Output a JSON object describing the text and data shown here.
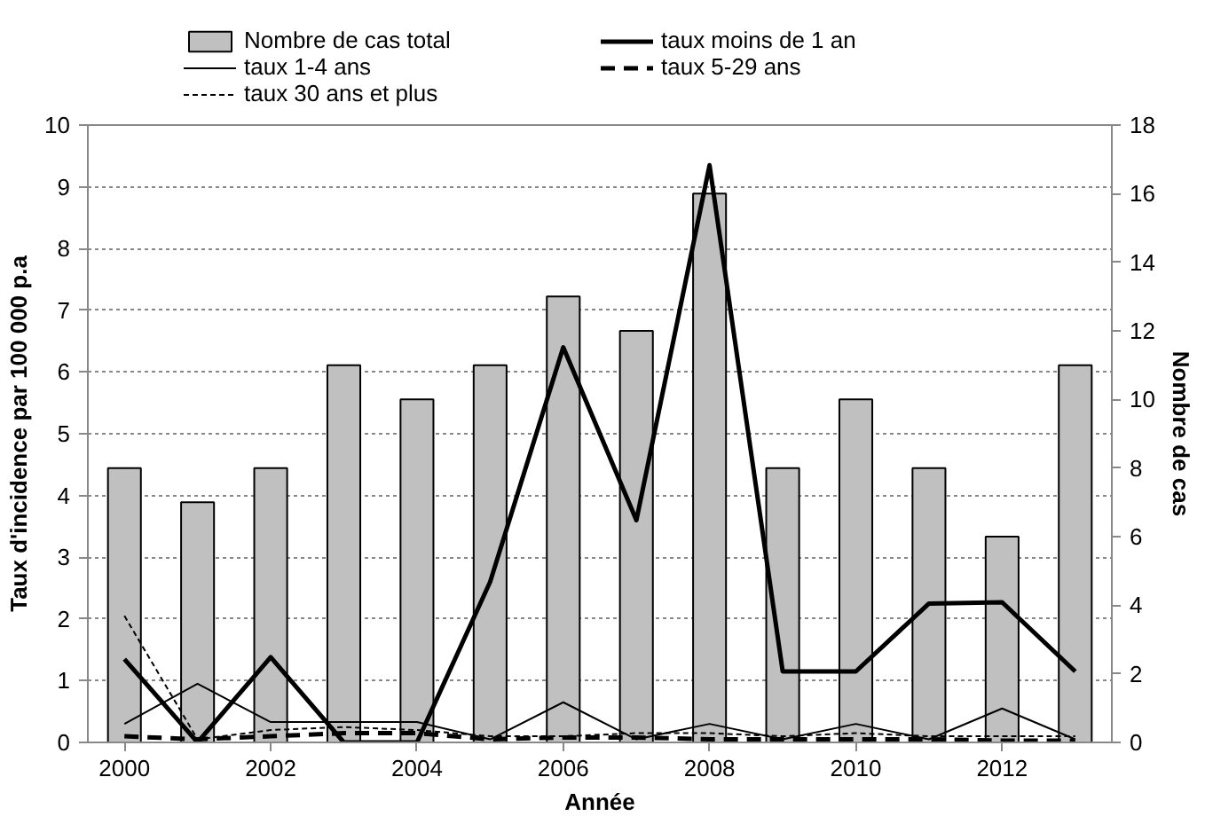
{
  "chart_data": {
    "type": "line",
    "xlabel": "Année",
    "ylabel": "Taux d'incidence par 100 000 p.a",
    "y2label": "Nombre de cas",
    "x": [
      2000,
      2001,
      2002,
      2003,
      2004,
      2005,
      2006,
      2007,
      2008,
      2009,
      2010,
      2011,
      2012,
      2013
    ],
    "xlim": [
      1999.5,
      2013.5
    ],
    "xticks": [
      2000,
      2002,
      2004,
      2006,
      2008,
      2010,
      2012
    ],
    "ylim": [
      0,
      10
    ],
    "yticks": [
      0,
      1,
      2,
      3,
      4,
      5,
      6,
      7,
      8,
      9,
      10
    ],
    "y2lim": [
      0,
      18
    ],
    "y2ticks": [
      0,
      2,
      4,
      6,
      8,
      10,
      12,
      14,
      16,
      18
    ],
    "grid": "y",
    "legend": "top",
    "series": [
      {
        "name": "Nombre de cas total",
        "type": "bar",
        "axis": "y2",
        "color": "#c0c0c0",
        "values": [
          8,
          7,
          8,
          11,
          10,
          11,
          13,
          12,
          16,
          8,
          10,
          8,
          6,
          11
        ]
      },
      {
        "name": "taux moins de 1 an",
        "color": "#000000",
        "line_style": "solid",
        "values": [
          1.35,
          0,
          1.38,
          0,
          0,
          2.6,
          6.4,
          3.6,
          9.35,
          1.15,
          1.15,
          2.25,
          2.27,
          1.15
        ]
      },
      {
        "name": "taux 1-4 ans",
        "color": "#000000",
        "line_style": "solid",
        "values": [
          0.3,
          0.95,
          0.33,
          0.33,
          0.33,
          0.05,
          0.65,
          0.05,
          0.3,
          0.05,
          0.3,
          0.05,
          0.55,
          0.05
        ]
      },
      {
        "name": "taux 5-29 ans",
        "color": "#000000",
        "line_style": "dashed",
        "values": [
          0.1,
          0.05,
          0.1,
          0.15,
          0.15,
          0.05,
          0.08,
          0.08,
          0.05,
          0.05,
          0.05,
          0.05,
          0.03,
          0.03
        ]
      },
      {
        "name": "taux 30 ans et plus",
        "color": "#000000",
        "line_style": "dotted",
        "values": [
          2.05,
          0.05,
          0.2,
          0.25,
          0.2,
          0.1,
          0.1,
          0.15,
          0.15,
          0.1,
          0.15,
          0.1,
          0.1,
          0.1
        ]
      }
    ]
  }
}
